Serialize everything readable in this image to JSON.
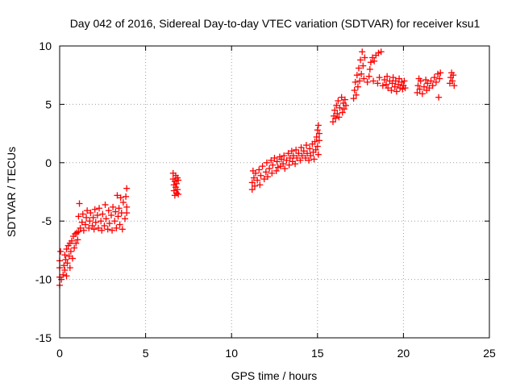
{
  "chart_data": {
    "type": "scatter",
    "title": "Day 042 of 2016, Sidereal Day-to-day VTEC variation (SDTVAR) for receiver ksu1",
    "xlabel": "GPS time / hours",
    "ylabel": "SDTVAR / TECUs",
    "xlim": [
      0,
      25
    ],
    "ylim": [
      -15,
      10
    ],
    "xticks": [
      0,
      5,
      10,
      15,
      20,
      25
    ],
    "yticks": [
      -15,
      -10,
      -5,
      0,
      5,
      10
    ],
    "xtick_labels": [
      "0",
      "5",
      "10",
      "15",
      "20",
      "25"
    ],
    "ytick_labels": [
      "-15",
      "-10",
      "-5",
      "0",
      "5",
      "10"
    ],
    "grid": true,
    "marker": "plus",
    "series": [
      {
        "name": "SDTVAR",
        "color": "#ff0000",
        "points": [
          [
            0.0,
            -10.5
          ],
          [
            0.0,
            -9.8
          ],
          [
            0.0,
            -9.0
          ],
          [
            0.0,
            -8.4
          ],
          [
            0.05,
            -7.6
          ],
          [
            0.1,
            -10.0
          ],
          [
            0.2,
            -9.6
          ],
          [
            0.25,
            -8.8
          ],
          [
            0.3,
            -7.9
          ],
          [
            0.3,
            -9.2
          ],
          [
            0.35,
            -8.3
          ],
          [
            0.4,
            -7.4
          ],
          [
            0.4,
            -9.7
          ],
          [
            0.45,
            -8.6
          ],
          [
            0.5,
            -7.1
          ],
          [
            0.55,
            -8.0
          ],
          [
            0.6,
            -6.9
          ],
          [
            0.6,
            -9.0
          ],
          [
            0.65,
            -7.6
          ],
          [
            0.7,
            -6.7
          ],
          [
            0.75,
            -8.2
          ],
          [
            0.8,
            -6.3
          ],
          [
            0.85,
            -7.3
          ],
          [
            0.9,
            -6.1
          ],
          [
            0.95,
            -6.9
          ],
          [
            1.0,
            -6.0
          ],
          [
            1.05,
            -6.6
          ],
          [
            1.1,
            -5.9
          ],
          [
            1.1,
            -4.6
          ],
          [
            1.15,
            -3.5
          ],
          [
            1.2,
            -5.6
          ],
          [
            1.3,
            -5.1
          ],
          [
            1.35,
            -4.4
          ],
          [
            1.4,
            -5.8
          ],
          [
            1.5,
            -5.3
          ],
          [
            1.55,
            -4.7
          ],
          [
            1.6,
            -4.1
          ],
          [
            1.7,
            -5.6
          ],
          [
            1.75,
            -5.0
          ],
          [
            1.8,
            -4.3
          ],
          [
            1.9,
            -5.4
          ],
          [
            1.95,
            -4.7
          ],
          [
            2.0,
            -5.7
          ],
          [
            2.05,
            -4.0
          ],
          [
            2.1,
            -5.1
          ],
          [
            2.2,
            -4.5
          ],
          [
            2.25,
            -5.6
          ],
          [
            2.3,
            -3.9
          ],
          [
            2.4,
            -5.0
          ],
          [
            2.45,
            -5.8
          ],
          [
            2.5,
            -4.4
          ],
          [
            2.6,
            -5.4
          ],
          [
            2.65,
            -3.6
          ],
          [
            2.7,
            -4.8
          ],
          [
            2.8,
            -5.7
          ],
          [
            2.85,
            -4.1
          ],
          [
            2.9,
            -5.2
          ],
          [
            3.0,
            -4.5
          ],
          [
            3.05,
            -5.8
          ],
          [
            3.1,
            -3.8
          ],
          [
            3.2,
            -5.0
          ],
          [
            3.25,
            -4.2
          ],
          [
            3.3,
            -5.6
          ],
          [
            3.35,
            -2.8
          ],
          [
            3.4,
            -4.6
          ],
          [
            3.45,
            -3.9
          ],
          [
            3.5,
            -5.3
          ],
          [
            3.55,
            -3.0
          ],
          [
            3.6,
            -4.3
          ],
          [
            3.65,
            -5.7
          ],
          [
            3.7,
            -3.4
          ],
          [
            3.8,
            -4.8
          ],
          [
            3.85,
            -2.9
          ],
          [
            3.9,
            -3.8
          ],
          [
            3.9,
            -2.2
          ],
          [
            3.9,
            -4.3
          ],
          [
            6.6,
            -0.9
          ],
          [
            6.6,
            -1.4
          ],
          [
            6.65,
            -1.9
          ],
          [
            6.65,
            -2.4
          ],
          [
            6.7,
            -1.6
          ],
          [
            6.7,
            -2.8
          ],
          [
            6.75,
            -1.1
          ],
          [
            6.75,
            -2.1
          ],
          [
            6.8,
            -1.8
          ],
          [
            6.8,
            -2.6
          ],
          [
            6.85,
            -1.3
          ],
          [
            6.85,
            -2.3
          ],
          [
            6.9,
            -1.5
          ],
          [
            6.9,
            -2.7
          ],
          [
            11.2,
            -2.3
          ],
          [
            11.2,
            -1.7
          ],
          [
            11.25,
            -0.7
          ],
          [
            11.3,
            -1.3
          ],
          [
            11.35,
            -2.0
          ],
          [
            11.4,
            -0.9
          ],
          [
            11.5,
            -1.5
          ],
          [
            11.6,
            -0.6
          ],
          [
            11.65,
            -1.9
          ],
          [
            11.7,
            -1.1
          ],
          [
            11.8,
            -0.3
          ],
          [
            11.9,
            -1.4
          ],
          [
            12.0,
            -0.8
          ],
          [
            12.05,
            0.0
          ],
          [
            12.1,
            -1.2
          ],
          [
            12.2,
            -0.5
          ],
          [
            12.3,
            0.2
          ],
          [
            12.35,
            -0.9
          ],
          [
            12.4,
            -0.2
          ],
          [
            12.5,
            0.4
          ],
          [
            12.6,
            -0.7
          ],
          [
            12.65,
            0.1
          ],
          [
            12.7,
            -0.4
          ],
          [
            12.8,
            0.5
          ],
          [
            12.85,
            -0.3
          ],
          [
            12.9,
            0.3
          ],
          [
            13.0,
            -0.1
          ],
          [
            13.05,
            0.6
          ],
          [
            13.1,
            -0.5
          ],
          [
            13.2,
            0.2
          ],
          [
            13.3,
            0.8
          ],
          [
            13.35,
            -0.2
          ],
          [
            13.4,
            0.4
          ],
          [
            13.5,
            1.0
          ],
          [
            13.55,
            0.1
          ],
          [
            13.6,
            0.6
          ],
          [
            13.7,
            -0.1
          ],
          [
            13.75,
            1.1
          ],
          [
            13.8,
            0.4
          ],
          [
            13.9,
            0.8
          ],
          [
            14.0,
            0.2
          ],
          [
            14.05,
            1.3
          ],
          [
            14.1,
            0.6
          ],
          [
            14.2,
            1.0
          ],
          [
            14.3,
            0.4
          ],
          [
            14.35,
            1.5
          ],
          [
            14.4,
            0.8
          ],
          [
            14.5,
            0.2
          ],
          [
            14.55,
            1.2
          ],
          [
            14.6,
            0.6
          ],
          [
            14.7,
            1.6
          ],
          [
            14.75,
            0.9
          ],
          [
            14.8,
            0.3
          ],
          [
            14.85,
            1.8
          ],
          [
            14.9,
            1.1
          ],
          [
            14.95,
            2.2
          ],
          [
            15.0,
            1.4
          ],
          [
            15.0,
            2.8
          ],
          [
            15.05,
            0.7
          ],
          [
            15.05,
            3.2
          ],
          [
            15.1,
            1.9
          ],
          [
            15.1,
            2.5
          ],
          [
            15.9,
            3.5
          ],
          [
            15.95,
            4.0
          ],
          [
            16.0,
            4.5
          ],
          [
            16.05,
            3.8
          ],
          [
            16.1,
            4.9
          ],
          [
            16.15,
            4.2
          ],
          [
            16.2,
            5.3
          ],
          [
            16.25,
            3.9
          ],
          [
            16.3,
            4.7
          ],
          [
            16.4,
            5.6
          ],
          [
            16.45,
            4.3
          ],
          [
            16.5,
            5.1
          ],
          [
            16.55,
            4.6
          ],
          [
            16.6,
            5.4
          ],
          [
            16.65,
            4.9
          ],
          [
            17.1,
            5.5
          ],
          [
            17.15,
            6.2
          ],
          [
            17.2,
            6.9
          ],
          [
            17.25,
            5.8
          ],
          [
            17.3,
            7.5
          ],
          [
            17.35,
            6.5
          ],
          [
            17.4,
            8.1
          ],
          [
            17.45,
            7.0
          ],
          [
            17.5,
            8.8
          ],
          [
            17.55,
            7.6
          ],
          [
            17.6,
            9.5
          ],
          [
            17.65,
            8.3
          ],
          [
            17.7,
            7.2
          ],
          [
            17.75,
            9.0
          ],
          [
            17.9,
            6.9
          ],
          [
            18.0,
            7.4
          ],
          [
            18.05,
            8.0
          ],
          [
            18.1,
            8.6
          ],
          [
            18.2,
            9.0
          ],
          [
            18.25,
            7.0
          ],
          [
            18.3,
            8.7
          ],
          [
            18.4,
            9.2
          ],
          [
            18.5,
            6.8
          ],
          [
            18.55,
            9.4
          ],
          [
            18.6,
            7.3
          ],
          [
            18.7,
            9.5
          ],
          [
            18.8,
            6.6
          ],
          [
            18.9,
            7.1
          ],
          [
            19.0,
            6.7
          ],
          [
            19.05,
            7.4
          ],
          [
            19.1,
            6.4
          ],
          [
            19.2,
            7.0
          ],
          [
            19.3,
            6.2
          ],
          [
            19.35,
            6.8
          ],
          [
            19.4,
            7.3
          ],
          [
            19.5,
            6.5
          ],
          [
            19.55,
            7.0
          ],
          [
            19.6,
            6.1
          ],
          [
            19.7,
            6.7
          ],
          [
            19.75,
            7.2
          ],
          [
            19.8,
            6.4
          ],
          [
            19.9,
            6.9
          ],
          [
            19.95,
            6.3
          ],
          [
            20.0,
            6.6
          ],
          [
            20.05,
            7.0
          ],
          [
            20.1,
            6.4
          ],
          [
            20.8,
            6.0
          ],
          [
            20.85,
            6.6
          ],
          [
            20.9,
            7.2
          ],
          [
            20.95,
            6.3
          ],
          [
            21.0,
            7.0
          ],
          [
            21.1,
            5.9
          ],
          [
            21.2,
            6.5
          ],
          [
            21.3,
            7.1
          ],
          [
            21.35,
            6.2
          ],
          [
            21.4,
            6.8
          ],
          [
            21.5,
            6.4
          ],
          [
            21.6,
            7.0
          ],
          [
            21.7,
            6.6
          ],
          [
            21.8,
            7.3
          ],
          [
            21.9,
            6.9
          ],
          [
            22.0,
            7.6
          ],
          [
            22.05,
            5.6
          ],
          [
            22.1,
            7.2
          ],
          [
            22.15,
            7.7
          ],
          [
            22.7,
            6.8
          ],
          [
            22.75,
            7.3
          ],
          [
            22.8,
            7.7
          ],
          [
            22.85,
            7.0
          ],
          [
            22.9,
            7.5
          ],
          [
            22.95,
            6.6
          ]
        ]
      }
    ]
  }
}
